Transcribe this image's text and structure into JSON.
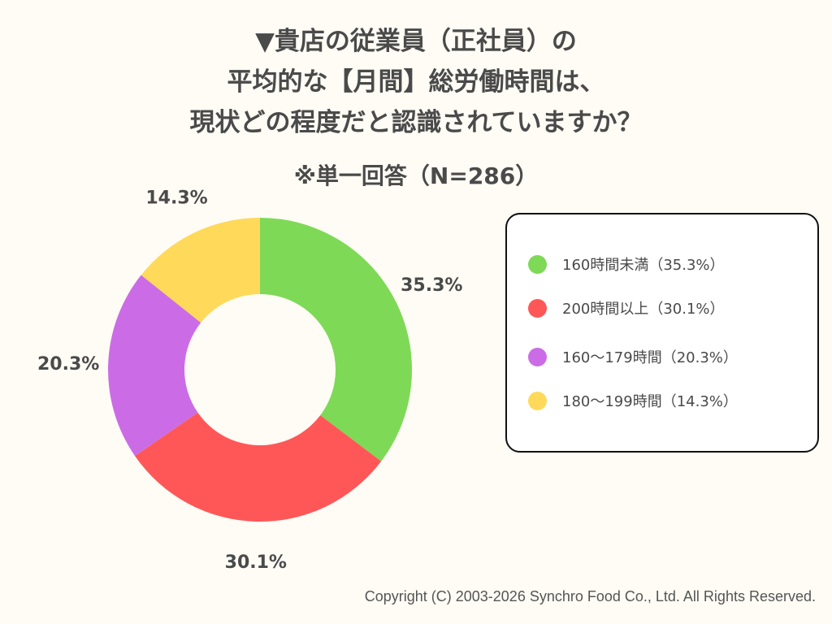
{
  "chart_data": {
    "type": "pie",
    "donut": true,
    "title": [
      "▼貴店の従業員（正社員）の",
      "平均的な【月間】総労働時間は、",
      "現状どの程度だと認識されていますか？"
    ],
    "subtitle": "※単一回答（N=286）",
    "categories": [
      "160時間未満",
      "200時間以上",
      "160〜179時間",
      "180〜199時間"
    ],
    "values": [
      35.3,
      30.1,
      20.3,
      14.3
    ],
    "data_labels": [
      "35.3%",
      "30.1%",
      "20.3%",
      "14.3%"
    ],
    "colors": [
      "#7ed957",
      "#ff5757",
      "#cb6ce6",
      "#ffd95a"
    ],
    "legend_placement": "right",
    "legend": [
      "160時間未満（35.3%）",
      "200時間以上（30.1%）",
      "160〜179時間（20.3%）",
      "180〜199時間（14.3%）"
    ]
  },
  "footer": {
    "copyright": "Copyright (C) 2003-2026  Synchro Food Co., Ltd. All Rights Reserved."
  }
}
